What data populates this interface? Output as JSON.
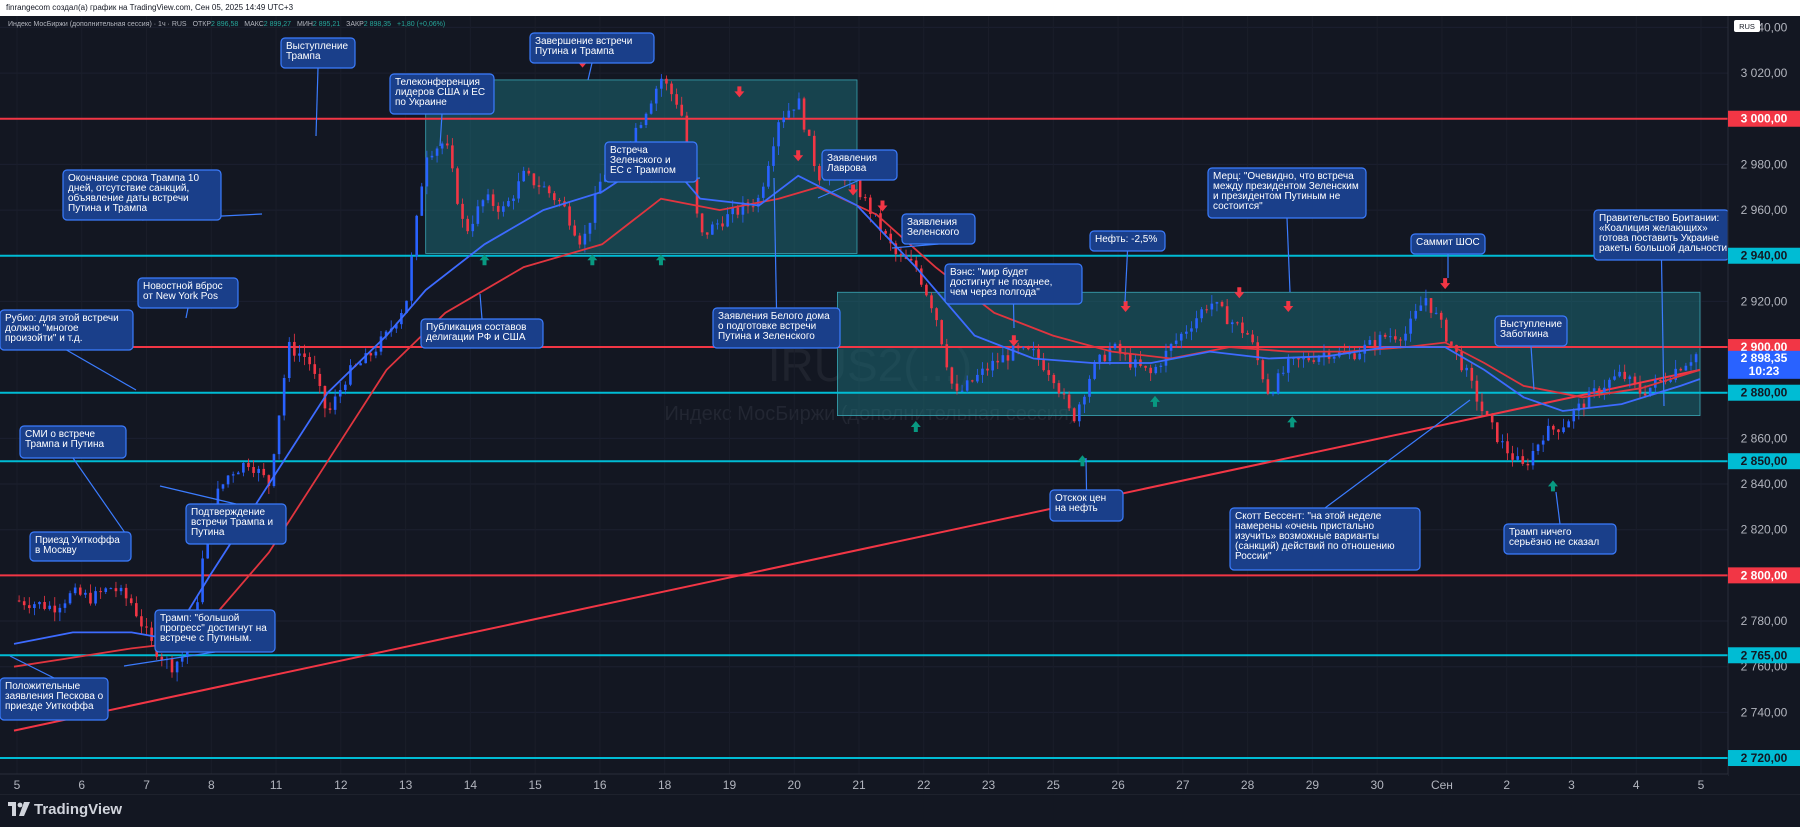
{
  "header": {
    "credit": "finrangecom создал(а) график на TradingView.com, Сен 05, 2025 14:49 UTC+3"
  },
  "legend": {
    "title": "Индекс МосБиржи (дополнительная сессия) · 1ч · RUS",
    "ohlc": [
      {
        "k": "ОТКР",
        "v": "2 896,58"
      },
      {
        "k": "МАКС",
        "v": "2 899,27"
      },
      {
        "k": "МИН",
        "v": "2 895,21"
      },
      {
        "k": "ЗАКР",
        "v": "2 898,35"
      }
    ],
    "change": "+1,80 (+0,06%)"
  },
  "watermark": {
    "symbol": "IRUS2(...)",
    "name": "Индекс МосБиржи (дополнительная сессия)"
  },
  "price_axis_badge": "RUS",
  "last_price": {
    "value": "2 898,35",
    "timer": "10:23"
  },
  "branding": "TradingView",
  "colors": {
    "background": "#131722",
    "up_candle": "#2962ff",
    "down_candle": "#f23645",
    "ma_fast": "#3d6bff",
    "ma_slow": "#e0353f",
    "cyan_level": "#00bcd4",
    "red_level": "#f23645",
    "zone_fill": "#1b6f7a",
    "note_fill": "#1a3f8a",
    "arrow_up": "#089981",
    "arrow_down": "#f23645"
  },
  "chart_data": {
    "type": "candlestick",
    "timeframe": "1h",
    "x_ticks": [
      "5",
      "6",
      "7",
      "8",
      "11",
      "12",
      "13",
      "14",
      "15",
      "16",
      "18",
      "19",
      "20",
      "21",
      "22",
      "23",
      "25",
      "26",
      "27",
      "28",
      "29",
      "30",
      "Сен",
      "2",
      "3",
      "4",
      "5"
    ],
    "y_ticks": [
      "3 040,00",
      "3 020,00",
      "3 000,00",
      "2 980,00",
      "2 960,00",
      "2 940,00",
      "2 920,00",
      "2 900,00",
      "2 880,00",
      "2 860,00",
      "2 850,00",
      "2 840,00",
      "2 820,00",
      "2 800,00",
      "2 780,00",
      "2 765,00",
      "2 760,00",
      "2 740,00",
      "2 720,00"
    ],
    "ylim": [
      2713,
      3045
    ],
    "close_path": [
      [
        0,
        2789
      ],
      [
        1,
        2788
      ],
      [
        2,
        2786
      ],
      [
        3,
        2792
      ],
      [
        4,
        2790
      ],
      [
        5,
        2795
      ],
      [
        6,
        2788
      ],
      [
        7,
        2770
      ],
      [
        8,
        2760
      ],
      [
        9,
        2768
      ],
      [
        10,
        2830
      ],
      [
        11,
        2845
      ],
      [
        12,
        2850
      ],
      [
        13,
        2840
      ],
      [
        14,
        2900
      ],
      [
        15,
        2895
      ],
      [
        16,
        2870
      ],
      [
        17,
        2888
      ],
      [
        18,
        2895
      ],
      [
        19,
        2905
      ],
      [
        20,
        2920
      ],
      [
        21,
        2985
      ],
      [
        22,
        2990
      ],
      [
        23,
        2950
      ],
      [
        24,
        2965
      ],
      [
        25,
        2960
      ],
      [
        26,
        2975
      ],
      [
        27,
        2970
      ],
      [
        28,
        2962
      ],
      [
        29,
        2945
      ],
      [
        30,
        2975
      ],
      [
        31,
        2985
      ],
      [
        32,
        3000
      ],
      [
        33,
        3018
      ],
      [
        34,
        3005
      ],
      [
        35,
        2948
      ],
      [
        36,
        2955
      ],
      [
        37,
        2960
      ],
      [
        38,
        2965
      ],
      [
        39,
        3000
      ],
      [
        40,
        3008
      ],
      [
        41,
        2975
      ],
      [
        42,
        2978
      ],
      [
        43,
        2970
      ],
      [
        44,
        2955
      ],
      [
        45,
        2940
      ],
      [
        46,
        2935
      ],
      [
        47,
        2915
      ],
      [
        48,
        2878
      ],
      [
        49,
        2886
      ],
      [
        50,
        2893
      ],
      [
        51,
        2898
      ],
      [
        52,
        2897
      ],
      [
        53,
        2888
      ],
      [
        54,
        2868
      ],
      [
        55,
        2890
      ],
      [
        56,
        2900
      ],
      [
        57,
        2893
      ],
      [
        58,
        2888
      ],
      [
        59,
        2900
      ],
      [
        60,
        2910
      ],
      [
        61,
        2920
      ],
      [
        62,
        2912
      ],
      [
        63,
        2905
      ],
      [
        64,
        2880
      ],
      [
        65,
        2892
      ],
      [
        66,
        2895
      ],
      [
        67,
        2898
      ],
      [
        68,
        2896
      ],
      [
        69,
        2900
      ],
      [
        70,
        2905
      ],
      [
        71,
        2906
      ],
      [
        72,
        2922
      ],
      [
        73,
        2906
      ],
      [
        74,
        2890
      ],
      [
        75,
        2870
      ],
      [
        76,
        2856
      ],
      [
        77,
        2847
      ],
      [
        78,
        2862
      ],
      [
        79,
        2866
      ],
      [
        80,
        2875
      ],
      [
        81,
        2883
      ],
      [
        82,
        2888
      ],
      [
        83,
        2880
      ],
      [
        84,
        2885
      ],
      [
        85,
        2892
      ],
      [
        86,
        2898
      ]
    ],
    "ma_fast": [
      [
        0,
        2770
      ],
      [
        3,
        2775
      ],
      [
        6,
        2775
      ],
      [
        8,
        2772
      ],
      [
        10,
        2800
      ],
      [
        13,
        2840
      ],
      [
        16,
        2880
      ],
      [
        19,
        2905
      ],
      [
        21,
        2925
      ],
      [
        24,
        2945
      ],
      [
        27,
        2960
      ],
      [
        30,
        2968
      ],
      [
        33,
        2985
      ],
      [
        35,
        2965
      ],
      [
        38,
        2962
      ],
      [
        40,
        2975
      ],
      [
        43,
        2962
      ],
      [
        46,
        2935
      ],
      [
        49,
        2905
      ],
      [
        52,
        2895
      ],
      [
        55,
        2893
      ],
      [
        58,
        2893
      ],
      [
        61,
        2898
      ],
      [
        64,
        2895
      ],
      [
        67,
        2896
      ],
      [
        70,
        2900
      ],
      [
        73,
        2900
      ],
      [
        75,
        2890
      ],
      [
        77,
        2878
      ],
      [
        79,
        2872
      ],
      [
        82,
        2875
      ],
      [
        85,
        2883
      ],
      [
        86,
        2886
      ]
    ],
    "ma_slow": [
      [
        0,
        2760
      ],
      [
        3,
        2764
      ],
      [
        6,
        2768
      ],
      [
        8,
        2770
      ],
      [
        10,
        2780
      ],
      [
        13,
        2810
      ],
      [
        16,
        2850
      ],
      [
        19,
        2890
      ],
      [
        22,
        2915
      ],
      [
        26,
        2935
      ],
      [
        30,
        2945
      ],
      [
        33,
        2965
      ],
      [
        36,
        2960
      ],
      [
        39,
        2965
      ],
      [
        41,
        2970
      ],
      [
        44,
        2958
      ],
      [
        47,
        2935
      ],
      [
        50,
        2915
      ],
      [
        53,
        2905
      ],
      [
        56,
        2898
      ],
      [
        59,
        2895
      ],
      [
        62,
        2900
      ],
      [
        65,
        2898
      ],
      [
        68,
        2898
      ],
      [
        71,
        2900
      ],
      [
        73,
        2902
      ],
      [
        75,
        2893
      ],
      [
        77,
        2883
      ],
      [
        80,
        2878
      ],
      [
        83,
        2882
      ],
      [
        86,
        2890
      ]
    ],
    "trendline": {
      "from": [
        0,
        2732
      ],
      "to": [
        86,
        2890
      ]
    },
    "levels": [
      {
        "value": 3000,
        "label": "3 000,00",
        "color": "red"
      },
      {
        "value": 2940,
        "label": "2 940,00",
        "color": "cyan"
      },
      {
        "value": 2900,
        "label": "2 900,00",
        "color": "red"
      },
      {
        "value": 2880,
        "label": "2 880,00",
        "color": "cyan"
      },
      {
        "value": 2850,
        "label": "2 850,00",
        "color": "cyan"
      },
      {
        "value": 2800,
        "label": "2 800,00",
        "color": "red"
      },
      {
        "value": 2765,
        "label": "2 765,00",
        "color": "cyan"
      },
      {
        "value": 2720,
        "label": "2 720,00",
        "color": "cyan"
      }
    ],
    "zones": [
      {
        "x0": 21,
        "x1": 43,
        "y0": 2941,
        "y1": 3017
      },
      {
        "x0": 42,
        "x1": 86,
        "y0": 2870,
        "y1": 2924
      }
    ],
    "arrows": [
      {
        "x": 24,
        "y": 2938,
        "dir": "up"
      },
      {
        "x": 29.5,
        "y": 2938,
        "dir": "up"
      },
      {
        "x": 33,
        "y": 2938,
        "dir": "up"
      },
      {
        "x": 29,
        "y": 3025,
        "dir": "down"
      },
      {
        "x": 37,
        "y": 3012,
        "dir": "down"
      },
      {
        "x": 40,
        "y": 2984,
        "dir": "down"
      },
      {
        "x": 42.8,
        "y": 2969,
        "dir": "down"
      },
      {
        "x": 44.3,
        "y": 2962,
        "dir": "down"
      },
      {
        "x": 46,
        "y": 2865,
        "dir": "up"
      },
      {
        "x": 51,
        "y": 2903,
        "dir": "down"
      },
      {
        "x": 54.5,
        "y": 2850,
        "dir": "up"
      },
      {
        "x": 56.7,
        "y": 2918,
        "dir": "down"
      },
      {
        "x": 58.2,
        "y": 2876,
        "dir": "up"
      },
      {
        "x": 62.5,
        "y": 2924,
        "dir": "down"
      },
      {
        "x": 65,
        "y": 2918,
        "dir": "down"
      },
      {
        "x": 65.2,
        "y": 2867,
        "dir": "up"
      },
      {
        "x": 73,
        "y": 2928,
        "dir": "down"
      },
      {
        "x": 78.5,
        "y": 2839,
        "dir": "up"
      }
    ],
    "annotations": [
      {
        "text": "Выступление\nТрампа"
      },
      {
        "text": "Завершение встречи\nПутина и Трампа"
      },
      {
        "text": "Телеконференция\nлидеров США и ЕС\nпо Украине"
      },
      {
        "text": "Окончание срока Трампа 10\nдней, отсутствие санкций,\nобъявление даты встречи\nПутина и Трампа"
      },
      {
        "text": "Встреча\nЗеленского и\nЕС с Трампом"
      },
      {
        "text": "Заявления\nЛаврова"
      },
      {
        "text": "Заявления\nЗеленского"
      },
      {
        "text": "Новостной вброс\nот New York Pos"
      },
      {
        "text": "Публикация составов\nделигации РФ и США"
      },
      {
        "text": "Вэнс: \"мир будет\nдостигнут не позднее,\nчем через полгода\""
      },
      {
        "text": "Заявления Белого дома\nо подготовке встречи\nПутина и Зеленского"
      },
      {
        "text": "Рубио: для этой встречи\nдолжно \"многое\nпроизойти\" и т.д."
      },
      {
        "text": "Мерц: \"Очевидно, что встреча\nмежду президентом Зеленским\nи президентом Путиным не\nсостоится\""
      },
      {
        "text": "Нефть: -2,5%"
      },
      {
        "text": "Саммит ШОС"
      },
      {
        "text": "Правительство Британии:\n«Коалиция желающих»\nготова поставить Украине\nракеты большой дальности"
      },
      {
        "text": "Выступление\nЗаботкина"
      },
      {
        "text": "СМИ о встрече\nТрампа и Путина"
      },
      {
        "text": "Подтверждение\nвстречи Трампа и\nПутина"
      },
      {
        "text": "Приезд Уиткоффа\nв Москву"
      },
      {
        "text": "Трамп: \"большой\nпрогресс\" достигнут на\nвстрече с Путиным."
      },
      {
        "text": "Положительные\nзаявления Пескова о\nприезде Уиткоффа"
      },
      {
        "text": "Отскок цен\nна нефть"
      },
      {
        "text": "Скотт Бессент: \"на этой неделе\nнамерены «очень пристально\nизучить» возможные варианты\n(санкций) действий по отношению\nРоссии\""
      },
      {
        "text": "Трамп ничего\nсерьёзно не сказал"
      }
    ]
  }
}
